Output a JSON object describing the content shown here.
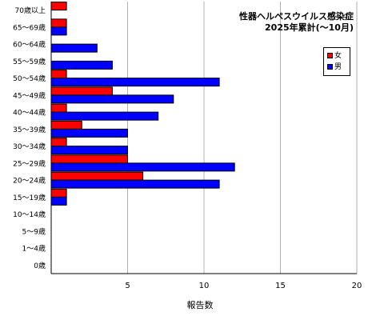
{
  "chart_data": {
    "type": "bar",
    "orientation": "horizontal",
    "title": "性器ヘルペスウイルス感染症",
    "subtitle": "2025年累計(～10月)",
    "xlabel": "報告数",
    "ylabel": "",
    "xlim": [
      0,
      20
    ],
    "xticks": [
      5,
      10,
      15,
      20
    ],
    "grid": "vertical",
    "legend_position": "top-right",
    "categories": [
      "70歳以上",
      "65～69歳",
      "60～64歳",
      "55～59歳",
      "50～54歳",
      "45～49歳",
      "40～44歳",
      "35～39歳",
      "30～34歳",
      "25～29歳",
      "20～24歳",
      "15～19歳",
      "10～14歳",
      "5～9歳",
      "1～4歳",
      "0歳"
    ],
    "series": [
      {
        "name": "女",
        "color": "#ff0000",
        "values": [
          1,
          1,
          0,
          0,
          1,
          4,
          1,
          2,
          1,
          5,
          6,
          1,
          0,
          0,
          0,
          0
        ]
      },
      {
        "name": "男",
        "color": "#0000ff",
        "values": [
          0,
          1,
          3,
          4,
          11,
          8,
          7,
          5,
          5,
          12,
          11,
          1,
          0,
          0,
          0,
          0
        ]
      }
    ]
  }
}
